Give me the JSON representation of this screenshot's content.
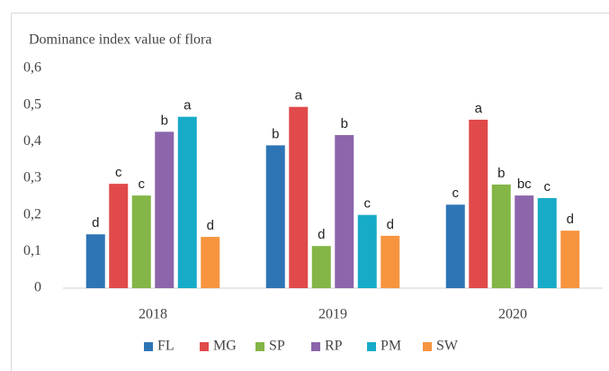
{
  "chart_data": {
    "type": "bar",
    "title": "Dominance index value of flora",
    "categories": [
      "2018",
      "2019",
      "2020"
    ],
    "series": [
      {
        "name": "FL",
        "color": "#2e75b6",
        "values": [
          0.147,
          0.39,
          0.228
        ],
        "letters": [
          "d",
          "b",
          "c"
        ]
      },
      {
        "name": "MG",
        "color": "#e04a4a",
        "values": [
          0.285,
          0.495,
          0.46
        ],
        "letters": [
          "c",
          "a",
          "a"
        ]
      },
      {
        "name": "SP",
        "color": "#84b547",
        "values": [
          0.253,
          0.115,
          0.283
        ],
        "letters": [
          "c",
          "d",
          "b"
        ]
      },
      {
        "name": "RP",
        "color": "#8c65ab",
        "values": [
          0.427,
          0.418,
          0.253
        ],
        "letters": [
          "b",
          "b",
          "bc"
        ]
      },
      {
        "name": "PM",
        "color": "#17abc8",
        "values": [
          0.468,
          0.2,
          0.246
        ],
        "letters": [
          "a",
          "c",
          "c"
        ]
      },
      {
        "name": "SW",
        "color": "#f7953f",
        "values": [
          0.14,
          0.143,
          0.157
        ],
        "letters": [
          "d",
          "d",
          "d"
        ]
      }
    ],
    "ylim": [
      0,
      0.6
    ],
    "yticks": [
      0,
      {
        "value": 0.1,
        "label": "0,1"
      },
      {
        "value": 0.2,
        "label": "0,2"
      },
      {
        "value": 0.3,
        "label": "0,3"
      },
      {
        "value": 0.4,
        "label": "0,4"
      },
      {
        "value": 0.5,
        "label": "0,5"
      },
      {
        "value": 0.6,
        "label": "0,6"
      }
    ],
    "grid": false,
    "legend": "bottom"
  }
}
